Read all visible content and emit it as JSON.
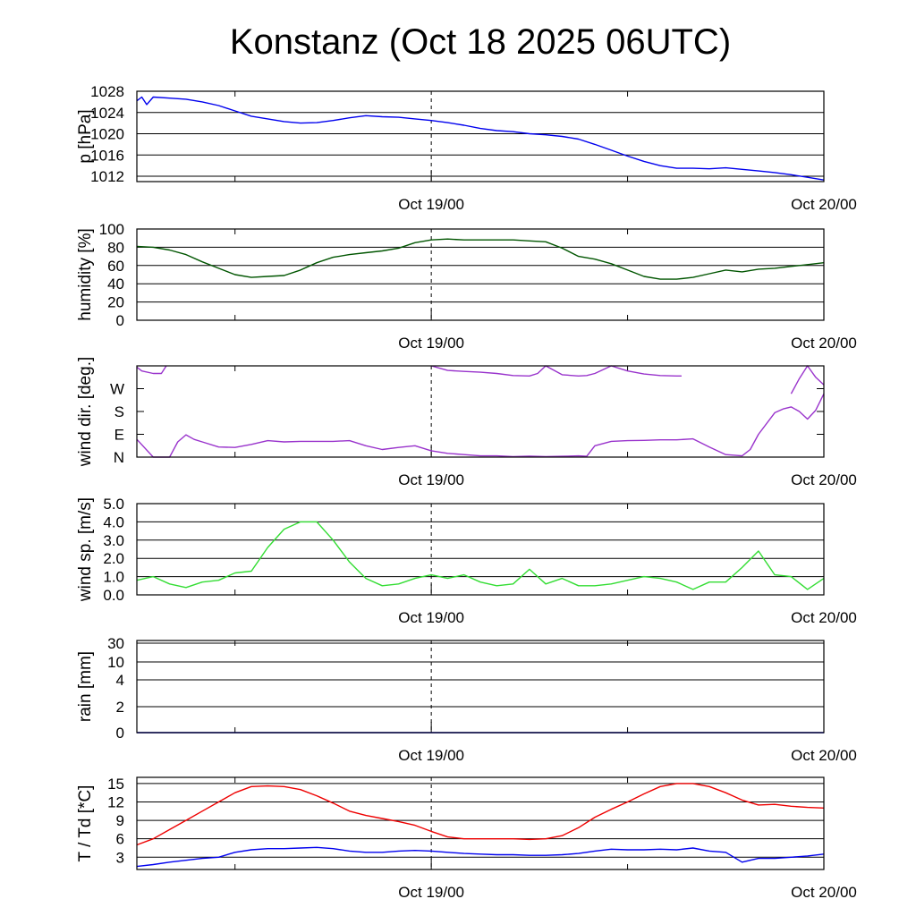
{
  "title": "Konstanz (Oct 18 2025 06UTC)",
  "chart_data": [
    {
      "type": "line",
      "ylabel": "p [hPa]",
      "ylim": [
        1011,
        1028
      ],
      "yticks": [
        1012,
        1016,
        1020,
        1024,
        1028
      ],
      "ytick_labels": [
        "1012",
        "1016",
        "1020",
        "1024",
        "1028"
      ],
      "xtick_labels": [
        "Oct 19/00",
        "Oct 20/00"
      ],
      "grid": true,
      "series": [
        {
          "color": "#0000ee",
          "x": [
            0,
            0.3,
            0.6,
            1,
            2,
            3,
            4,
            5,
            6,
            7,
            8,
            9,
            10,
            11,
            12,
            13,
            14,
            15,
            16,
            17,
            18,
            19,
            20,
            21,
            22,
            23,
            24,
            25,
            26,
            27,
            28,
            29,
            30,
            31,
            32,
            33,
            34,
            35,
            36,
            37,
            38,
            39,
            40,
            41,
            42
          ],
          "values": [
            1026.2,
            1026.9,
            1025.5,
            1026.9,
            1026.7,
            1026.5,
            1026.0,
            1025.3,
            1024.3,
            1023.3,
            1022.8,
            1022.3,
            1022.0,
            1022.1,
            1022.5,
            1023.0,
            1023.4,
            1023.2,
            1023.1,
            1022.8,
            1022.5,
            1022.1,
            1021.6,
            1021.0,
            1020.6,
            1020.4,
            1020.0,
            1019.8,
            1019.5,
            1019.0,
            1018.0,
            1016.9,
            1015.8,
            1014.8,
            1014.0,
            1013.5,
            1013.5,
            1013.4,
            1013.6,
            1013.3,
            1013.0,
            1012.7,
            1012.3,
            1011.8,
            1011.3
          ]
        }
      ]
    },
    {
      "type": "line",
      "ylabel": "humidity [%]",
      "ylim": [
        0,
        100
      ],
      "yticks": [
        0,
        20,
        40,
        60,
        80,
        100
      ],
      "ytick_labels": [
        "0",
        "20",
        "40",
        "60",
        "80",
        "100"
      ],
      "xtick_labels": [
        "Oct 19/00",
        "Oct 20/00"
      ],
      "grid": true,
      "series": [
        {
          "color": "#005500",
          "x": [
            0,
            1,
            2,
            3,
            4,
            5,
            6,
            7,
            8,
            9,
            10,
            11,
            12,
            13,
            14,
            15,
            16,
            17,
            18,
            19,
            20,
            21,
            22,
            23,
            24,
            25,
            26,
            27,
            28,
            29,
            30,
            31,
            32,
            33,
            34,
            35,
            36,
            37,
            38,
            39,
            40,
            41,
            42
          ],
          "values": [
            81,
            80,
            77,
            72,
            64,
            57,
            50,
            47,
            48,
            49,
            55,
            63,
            69,
            72,
            74,
            76,
            79,
            85,
            88,
            89,
            88,
            88,
            88,
            88,
            87,
            86,
            79,
            70,
            67,
            62,
            55,
            48,
            45,
            45,
            47,
            51,
            55,
            53,
            56,
            57,
            59,
            61,
            63
          ]
        }
      ]
    },
    {
      "type": "line",
      "ylabel": "wind dir. [deg.]",
      "ylim": [
        0,
        360
      ],
      "yticks": [
        0,
        90,
        180,
        270
      ],
      "ytick_labels": [
        "N",
        "E",
        "S",
        "W"
      ],
      "xtick_labels": [
        "Oct 19/00",
        "Oct 20/00"
      ],
      "grid": false,
      "series": [
        {
          "color": "#9933cc",
          "x": [
            0,
            1,
            2,
            2.5,
            3,
            3.5,
            4,
            5,
            6,
            7,
            8,
            9,
            10,
            11,
            12,
            13,
            14,
            15,
            16,
            17,
            18,
            19,
            20,
            21,
            22,
            23,
            24,
            25,
            26,
            27,
            27.5,
            28,
            29,
            30,
            31,
            32,
            33,
            34,
            35,
            36,
            37,
            37.5,
            38,
            39,
            39.5,
            40,
            40.5,
            41,
            41.5,
            42
          ],
          "values": [
            70,
            0,
            0,
            60,
            88,
            70,
            60,
            40,
            38,
            50,
            65,
            60,
            62,
            62,
            62,
            65,
            45,
            30,
            38,
            45,
            25,
            15,
            10,
            5,
            5,
            2,
            4,
            2,
            3,
            5,
            3,
            45,
            62,
            65,
            66,
            68,
            68,
            72,
            40,
            10,
            5,
            30,
            90,
            175,
            190,
            198,
            180,
            150,
            185,
            250
          ]
        },
        {
          "color": "#9933cc",
          "x": [
            0,
            0.3,
            1,
            1.5,
            1.8
          ],
          "values": [
            355,
            340,
            330,
            330,
            360
          ]
        },
        {
          "color": "#9933cc",
          "x": [
            18,
            19,
            20,
            21,
            22,
            23,
            24,
            24.5,
            25,
            26,
            27,
            27.5,
            28,
            29,
            30,
            31,
            32,
            33,
            33.3
          ],
          "values": [
            360,
            342,
            338,
            335,
            330,
            322,
            320,
            330,
            360,
            325,
            320,
            322,
            330,
            360,
            340,
            328,
            322,
            320,
            320
          ]
        },
        {
          "color": "#9933cc",
          "x": [
            40,
            40.5,
            41,
            41.5,
            42
          ],
          "values": [
            250,
            310,
            360,
            315,
            285
          ]
        }
      ]
    },
    {
      "type": "line",
      "ylabel": "wind sp. [m/s]",
      "ylim": [
        0,
        5
      ],
      "yticks": [
        0,
        1,
        2,
        3,
        4,
        5
      ],
      "ytick_labels": [
        "0.0",
        "1.0",
        "2.0",
        "3.0",
        "4.0",
        "5.0"
      ],
      "xtick_labels": [
        "Oct 19/00",
        "Oct 20/00"
      ],
      "grid": true,
      "series": [
        {
          "color": "#33dd33",
          "x": [
            0,
            1,
            2,
            3,
            4,
            5,
            6,
            7,
            8,
            9,
            10,
            11,
            12,
            13,
            14,
            15,
            16,
            17,
            18,
            19,
            20,
            21,
            22,
            23,
            24,
            25,
            26,
            27,
            28,
            29,
            30,
            31,
            32,
            33,
            34,
            35,
            36,
            37,
            38,
            39,
            40,
            41,
            42
          ],
          "values": [
            0.8,
            1.0,
            0.6,
            0.4,
            0.7,
            0.8,
            1.2,
            1.3,
            2.6,
            3.6,
            4.0,
            4.0,
            3.0,
            1.8,
            0.9,
            0.5,
            0.6,
            0.9,
            1.1,
            0.9,
            1.1,
            0.7,
            0.5,
            0.6,
            1.4,
            0.6,
            0.9,
            0.5,
            0.5,
            0.6,
            0.8,
            1.0,
            0.9,
            0.7,
            0.3,
            0.7,
            0.7,
            1.5,
            2.4,
            1.1,
            1.0,
            0.3,
            0.9
          ]
        }
      ]
    },
    {
      "type": "line",
      "ylabel": "rain [mm]",
      "ylim": [
        0,
        30
      ],
      "yticks": [
        0,
        2,
        4,
        10,
        30
      ],
      "ytick_labels": [
        "0",
        "2",
        "4",
        "10",
        "30"
      ],
      "xtick_labels": [
        "Oct 19/00",
        "Oct 20/00"
      ],
      "grid": true,
      "series": [
        {
          "color": "#0000ee",
          "x": [
            0,
            42
          ],
          "values": [
            0,
            0
          ]
        }
      ]
    },
    {
      "type": "line",
      "ylabel": "T / Td [*C]",
      "ylim": [
        1,
        16
      ],
      "yticks": [
        3,
        6,
        9,
        12,
        15
      ],
      "ytick_labels": [
        "3",
        "6",
        "9",
        "12",
        "15"
      ],
      "xtick_labels": [
        "Oct 19/00",
        "Oct 20/00"
      ],
      "grid": true,
      "series": [
        {
          "color": "#ee0000",
          "x": [
            0,
            1,
            2,
            3,
            4,
            5,
            6,
            7,
            8,
            9,
            10,
            11,
            12,
            13,
            14,
            15,
            16,
            17,
            18,
            19,
            20,
            21,
            22,
            23,
            24,
            25,
            26,
            27,
            28,
            29,
            30,
            31,
            32,
            33,
            34,
            35,
            36,
            37,
            38,
            39,
            40,
            41,
            42
          ],
          "values": [
            5.0,
            6.0,
            7.5,
            9.0,
            10.5,
            12.0,
            13.5,
            14.5,
            14.6,
            14.5,
            14.0,
            13.0,
            11.8,
            10.5,
            9.8,
            9.3,
            8.8,
            8.2,
            7.2,
            6.3,
            6.0,
            6.0,
            6.0,
            6.0,
            5.9,
            6.0,
            6.5,
            7.8,
            9.5,
            10.8,
            12.0,
            13.3,
            14.5,
            15.0,
            15.0,
            14.5,
            13.5,
            12.3,
            11.5,
            11.6,
            11.3,
            11.1,
            11.0
          ]
        },
        {
          "color": "#0000ee",
          "x": [
            0,
            1,
            2,
            3,
            4,
            5,
            6,
            7,
            8,
            9,
            10,
            11,
            12,
            13,
            14,
            15,
            16,
            17,
            18,
            19,
            20,
            21,
            22,
            23,
            24,
            25,
            26,
            27,
            28,
            29,
            30,
            31,
            32,
            33,
            34,
            35,
            36,
            37,
            38,
            39,
            40,
            41,
            42
          ],
          "values": [
            1.5,
            1.8,
            2.2,
            2.5,
            2.8,
            3.0,
            3.8,
            4.2,
            4.4,
            4.4,
            4.5,
            4.6,
            4.4,
            4.0,
            3.8,
            3.8,
            4.0,
            4.1,
            4.0,
            3.8,
            3.6,
            3.5,
            3.4,
            3.4,
            3.3,
            3.3,
            3.4,
            3.6,
            4.0,
            4.3,
            4.2,
            4.2,
            4.3,
            4.2,
            4.5,
            4.0,
            3.8,
            2.2,
            2.8,
            2.8,
            3.0,
            3.2,
            3.5
          ]
        }
      ]
    }
  ]
}
